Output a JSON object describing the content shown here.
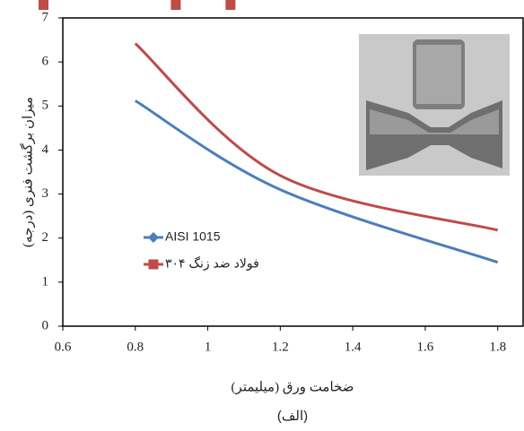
{
  "chart_data": {
    "type": "line",
    "smooth": true,
    "y_label": "میزان برگشت فنری (درجه)",
    "x_label": "ضخامت ورق (میلیمتر)",
    "caption": "(الف)",
    "x": [
      0.8,
      1.2,
      1.8
    ],
    "series": [
      {
        "name": "AISI 1015",
        "color": "#4a7ebb",
        "marker": "diamond",
        "values": [
          5.12,
          3.1,
          1.45
        ]
      },
      {
        "name": "فولاد ضد زنگ ۳۰۴",
        "color": "#be4b48",
        "marker": "square",
        "values": [
          6.42,
          3.42,
          2.18
        ]
      }
    ],
    "xlim": [
      0.6,
      1.87
    ],
    "xticks": [
      0.6,
      0.8,
      1,
      1.2,
      1.4,
      1.6,
      1.8
    ],
    "ylim": [
      0,
      7
    ],
    "yticks": [
      0,
      1,
      2,
      3,
      4,
      5,
      6,
      7
    ],
    "grid": false,
    "legend": "center-left"
  }
}
